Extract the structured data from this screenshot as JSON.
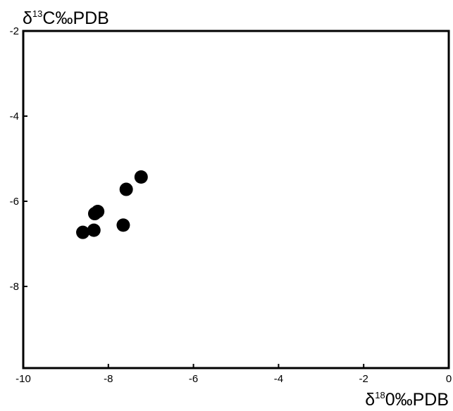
{
  "chart_data": {
    "type": "scatter",
    "title": "",
    "ylabel": {
      "prefix": "δ",
      "sup": "13",
      "suffix": "C‰PDB"
    },
    "xlabel": {
      "prefix": "δ",
      "sup": "18",
      "suffix": "0‰PDB"
    },
    "xlim": [
      -10,
      0
    ],
    "ylim": [
      -10,
      -2
    ],
    "x_ticks": [
      -10,
      -8,
      -6,
      -4,
      -2,
      0
    ],
    "x_tick_labels": [
      "-10",
      "-8",
      "-6",
      "-4",
      "-2",
      "0"
    ],
    "y_ticks": [
      -2,
      -4,
      -6,
      -8
    ],
    "y_tick_labels": [
      "-2",
      "-4",
      "-6",
      "-8"
    ],
    "grid": false,
    "legend": "none",
    "marker_color": "#000000",
    "series": [
      {
        "points": [
          {
            "x": -8.6,
            "y": -6.73
          },
          {
            "x": -8.34,
            "y": -6.68
          },
          {
            "x": -8.25,
            "y": -6.24
          },
          {
            "x": -8.32,
            "y": -6.29
          },
          {
            "x": -7.65,
            "y": -6.56
          },
          {
            "x": -7.58,
            "y": -5.72
          },
          {
            "x": -7.23,
            "y": -5.43
          }
        ]
      }
    ]
  }
}
